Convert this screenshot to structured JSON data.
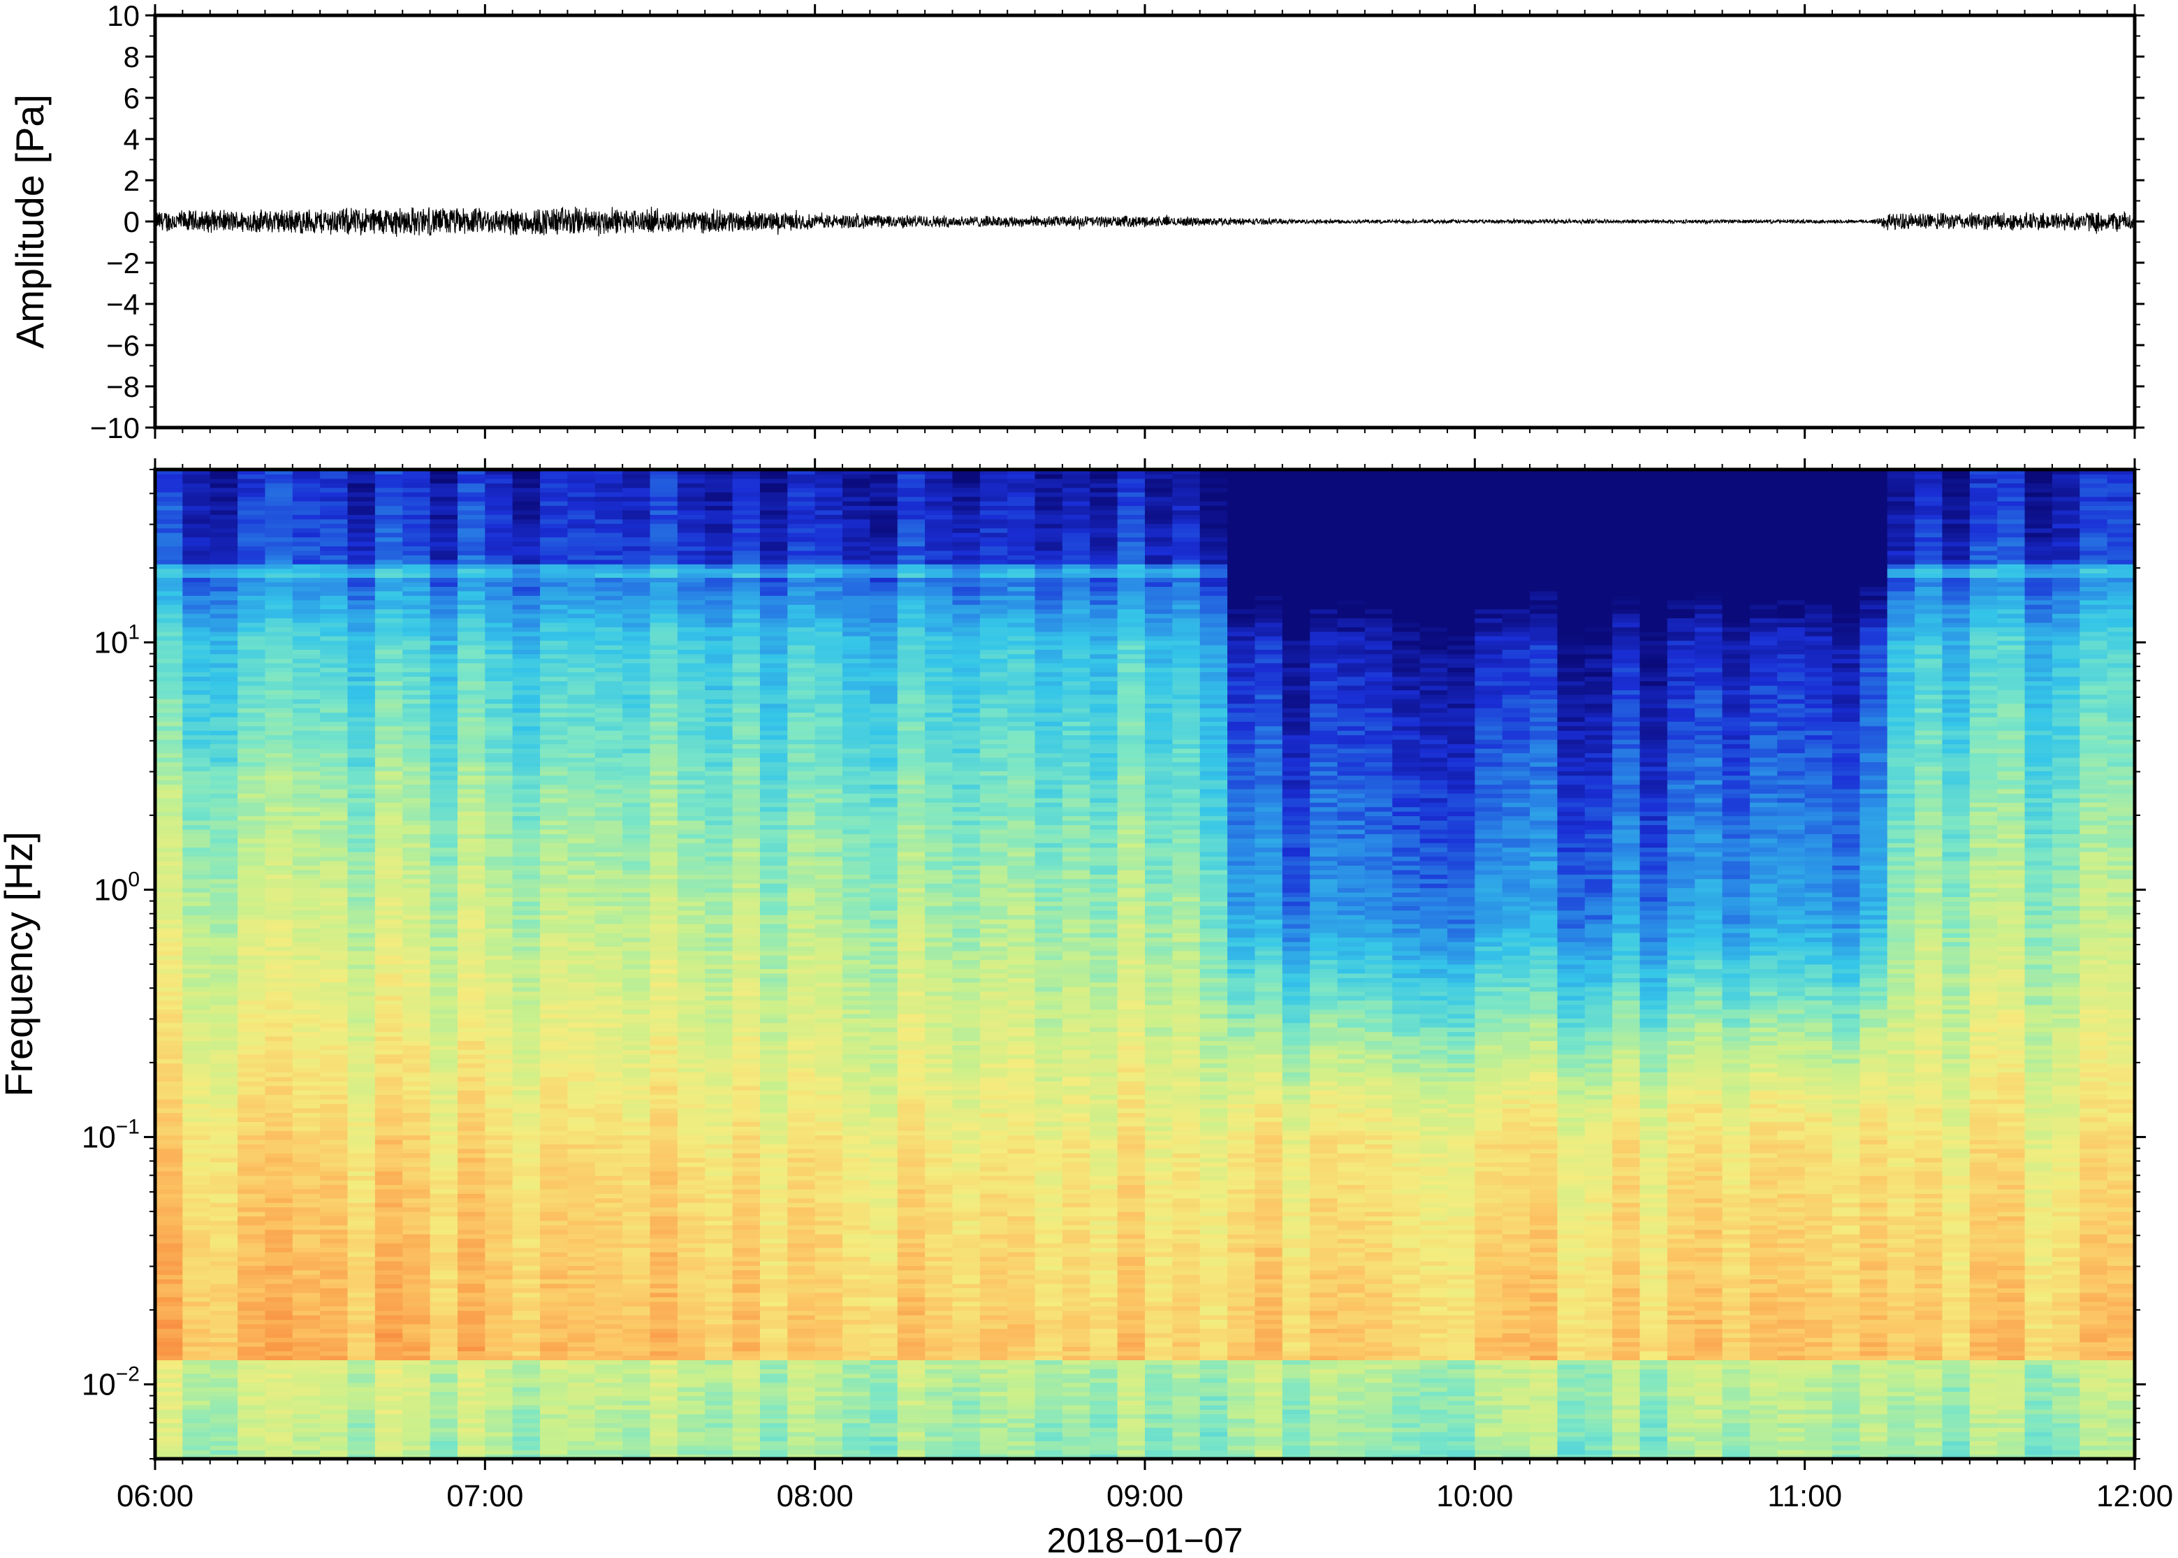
{
  "chart_data": [
    {
      "type": "line",
      "panel": "waveform",
      "ylabel": "Amplitude [Pa]",
      "xlabel": "",
      "ylim": [
        -10,
        10
      ],
      "yticks": [
        10,
        8,
        6,
        4,
        2,
        0,
        -2,
        -4,
        -6,
        -8,
        -10
      ],
      "ytick_labels": [
        "10",
        "8",
        "6",
        "4",
        "2",
        "0",
        "−2",
        "−4",
        "−6",
        "−8",
        "−10"
      ],
      "xlim": [
        "06:00",
        "12:00"
      ],
      "x_unit": "hours since 00:00 on 2018-01-07",
      "envelope": {
        "x": [
          6.0,
          6.25,
          6.5,
          6.75,
          7.0,
          7.25,
          7.5,
          7.75,
          8.0,
          8.25,
          8.5,
          8.75,
          9.0,
          9.25,
          9.5,
          9.75,
          10.0,
          10.25,
          10.5,
          10.75,
          11.0,
          11.2,
          11.25,
          11.5,
          11.75,
          12.0
        ],
        "y": [
          0.6,
          0.6,
          0.7,
          0.8,
          0.7,
          0.8,
          0.6,
          0.6,
          0.4,
          0.35,
          0.3,
          0.3,
          0.3,
          0.2,
          0.12,
          0.1,
          0.1,
          0.12,
          0.1,
          0.1,
          0.1,
          0.1,
          0.45,
          0.45,
          0.5,
          0.55
        ]
      },
      "line_color": "#000000"
    },
    {
      "type": "heatmap",
      "panel": "spectrogram",
      "ylabel": "Frequency [Hz]",
      "xlabel": "2018−01−07",
      "y_scale": "log",
      "ylim": [
        0.005,
        50
      ],
      "yticks": [
        0.01,
        0.1,
        1,
        10
      ],
      "ytick_labels": [
        {
          "base": "10",
          "exp": "−2"
        },
        {
          "base": "10",
          "exp": "−1"
        },
        {
          "base": "10",
          "exp": "0"
        },
        {
          "base": "10",
          "exp": "1"
        }
      ],
      "xlim": [
        "06:00",
        "12:00"
      ],
      "x_unit": "hours since 00:00 on 2018-01-07",
      "xticks": [
        6,
        7,
        8,
        9,
        10,
        11,
        12
      ],
      "xtick_labels": [
        "06:00",
        "07:00",
        "08:00",
        "09:00",
        "10:00",
        "11:00",
        "12:00"
      ],
      "colormap": [
        "#0a0a7a",
        "#1a2fd6",
        "#2a8ae6",
        "#35c6e8",
        "#7be6c6",
        "#c9f08c",
        "#f4ec7e",
        "#fcc766",
        "#f99645",
        "#e8502e"
      ],
      "quiet_intervals": [
        [
          9.3,
          9.9
        ],
        [
          9.9,
          10.15
        ],
        [
          10.2,
          11.2
        ]
      ],
      "note_level": "relative power 0-1 by time slice and frequency band"
    }
  ]
}
